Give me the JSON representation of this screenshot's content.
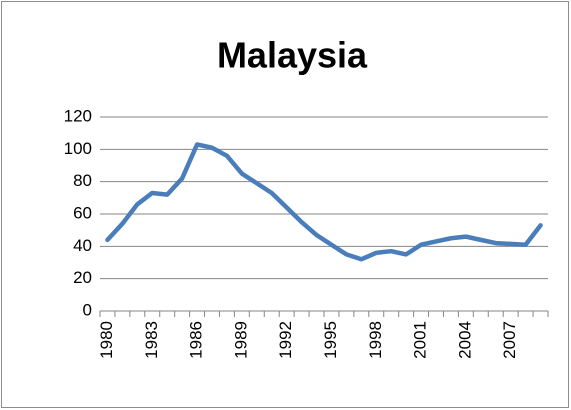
{
  "chart_data": {
    "type": "line",
    "title": "Malaysia",
    "categories": [
      "1980",
      null,
      null,
      "1983",
      null,
      null,
      "1986",
      null,
      null,
      "1989",
      null,
      null,
      "1992",
      null,
      null,
      "1995",
      null,
      null,
      "1998",
      null,
      null,
      "2001",
      null,
      null,
      "2004",
      null,
      null,
      "2007",
      null,
      null
    ],
    "series": [
      {
        "name": "Malaysia",
        "color": "#4a7ebb",
        "values": [
          44,
          54,
          66,
          73,
          72,
          82,
          103,
          101,
          96,
          85,
          79,
          73,
          64,
          55,
          47,
          41,
          35,
          32,
          36,
          37,
          35,
          41,
          43,
          45,
          46,
          44,
          42,
          41.5,
          41,
          53
        ]
      }
    ],
    "ylim": [
      0,
      120
    ],
    "yticks": [
      0,
      20,
      40,
      60,
      80,
      100,
      120
    ],
    "grid": true
  }
}
